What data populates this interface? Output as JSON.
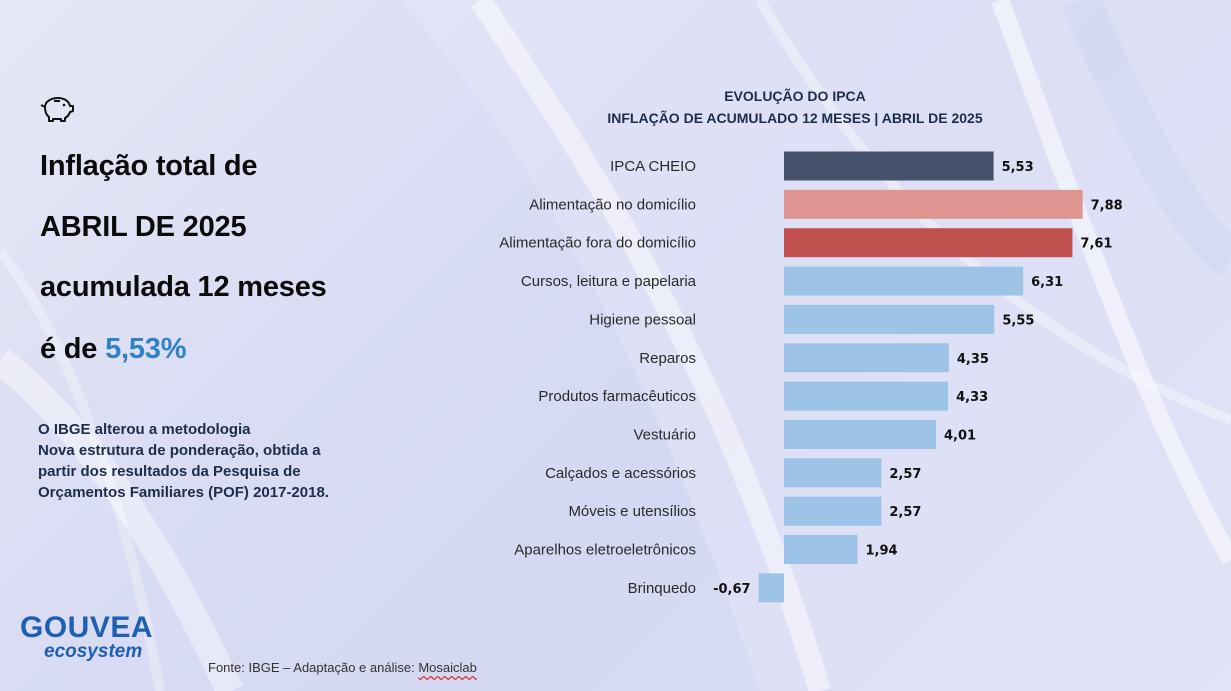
{
  "headline": {
    "line1": "Inflação total de",
    "line2": "ABRIL DE 2025",
    "line3": "acumulada 12 meses",
    "line4_prefix": "é de ",
    "line4_value": "5,53%"
  },
  "note": {
    "line1": "O IBGE alterou a metodologia",
    "line2": "Nova estrutura de ponderação, obtida a",
    "line3": "partir dos resultados da Pesquisa de",
    "line4": "Orçamentos Familiares (POF) 2017-2018."
  },
  "logo": {
    "brand": "GOUVEA",
    "sub": "ecosystem"
  },
  "source": {
    "prefix": "Fonte: IBGE – Adaptação e análise: ",
    "underlined": "Mosaiclab"
  },
  "icons": {
    "piggy": "piggy-bank-icon"
  },
  "colors": {
    "accent": "#2f82c6",
    "headline_bar": "#44536b",
    "highlight_light": "#de9592",
    "highlight_dark": "#c0504d",
    "default_bar": "#9dc3e6"
  },
  "chart_data": {
    "type": "bar",
    "orientation": "horizontal",
    "title": "EVOLUÇÃO DO IPCA",
    "subtitle": "INFLAÇÃO DE ACUMULADO 12 MESES | ABRIL DE 2025",
    "categories": [
      "IPCA CHEIO",
      "Alimentação no domicílio",
      "Alimentação fora do domicílio",
      "Cursos, leitura e papelaria",
      "Higiene pessoal",
      "Reparos",
      "Produtos farmacêuticos",
      "Vestuário",
      "Calçados e acessórios",
      "Móveis e utensílios",
      "Aparelhos eletroeletrônicos",
      "Brinquedo"
    ],
    "values": [
      5.53,
      7.88,
      7.61,
      6.31,
      5.55,
      4.35,
      4.33,
      4.01,
      2.57,
      2.57,
      1.94,
      -0.67
    ],
    "value_labels": [
      "5,53",
      "7,88",
      "7,61",
      "6,31",
      "5,55",
      "4,35",
      "4,33",
      "4,01",
      "2,57",
      "2,57",
      "1,94",
      "-0,67"
    ],
    "bar_colors": [
      "#44536b",
      "#de9592",
      "#c0504d",
      "#9dc3e6",
      "#9dc3e6",
      "#9dc3e6",
      "#9dc3e6",
      "#9dc3e6",
      "#9dc3e6",
      "#9dc3e6",
      "#9dc3e6",
      "#9dc3e6"
    ],
    "grid": false,
    "legend": "none"
  }
}
